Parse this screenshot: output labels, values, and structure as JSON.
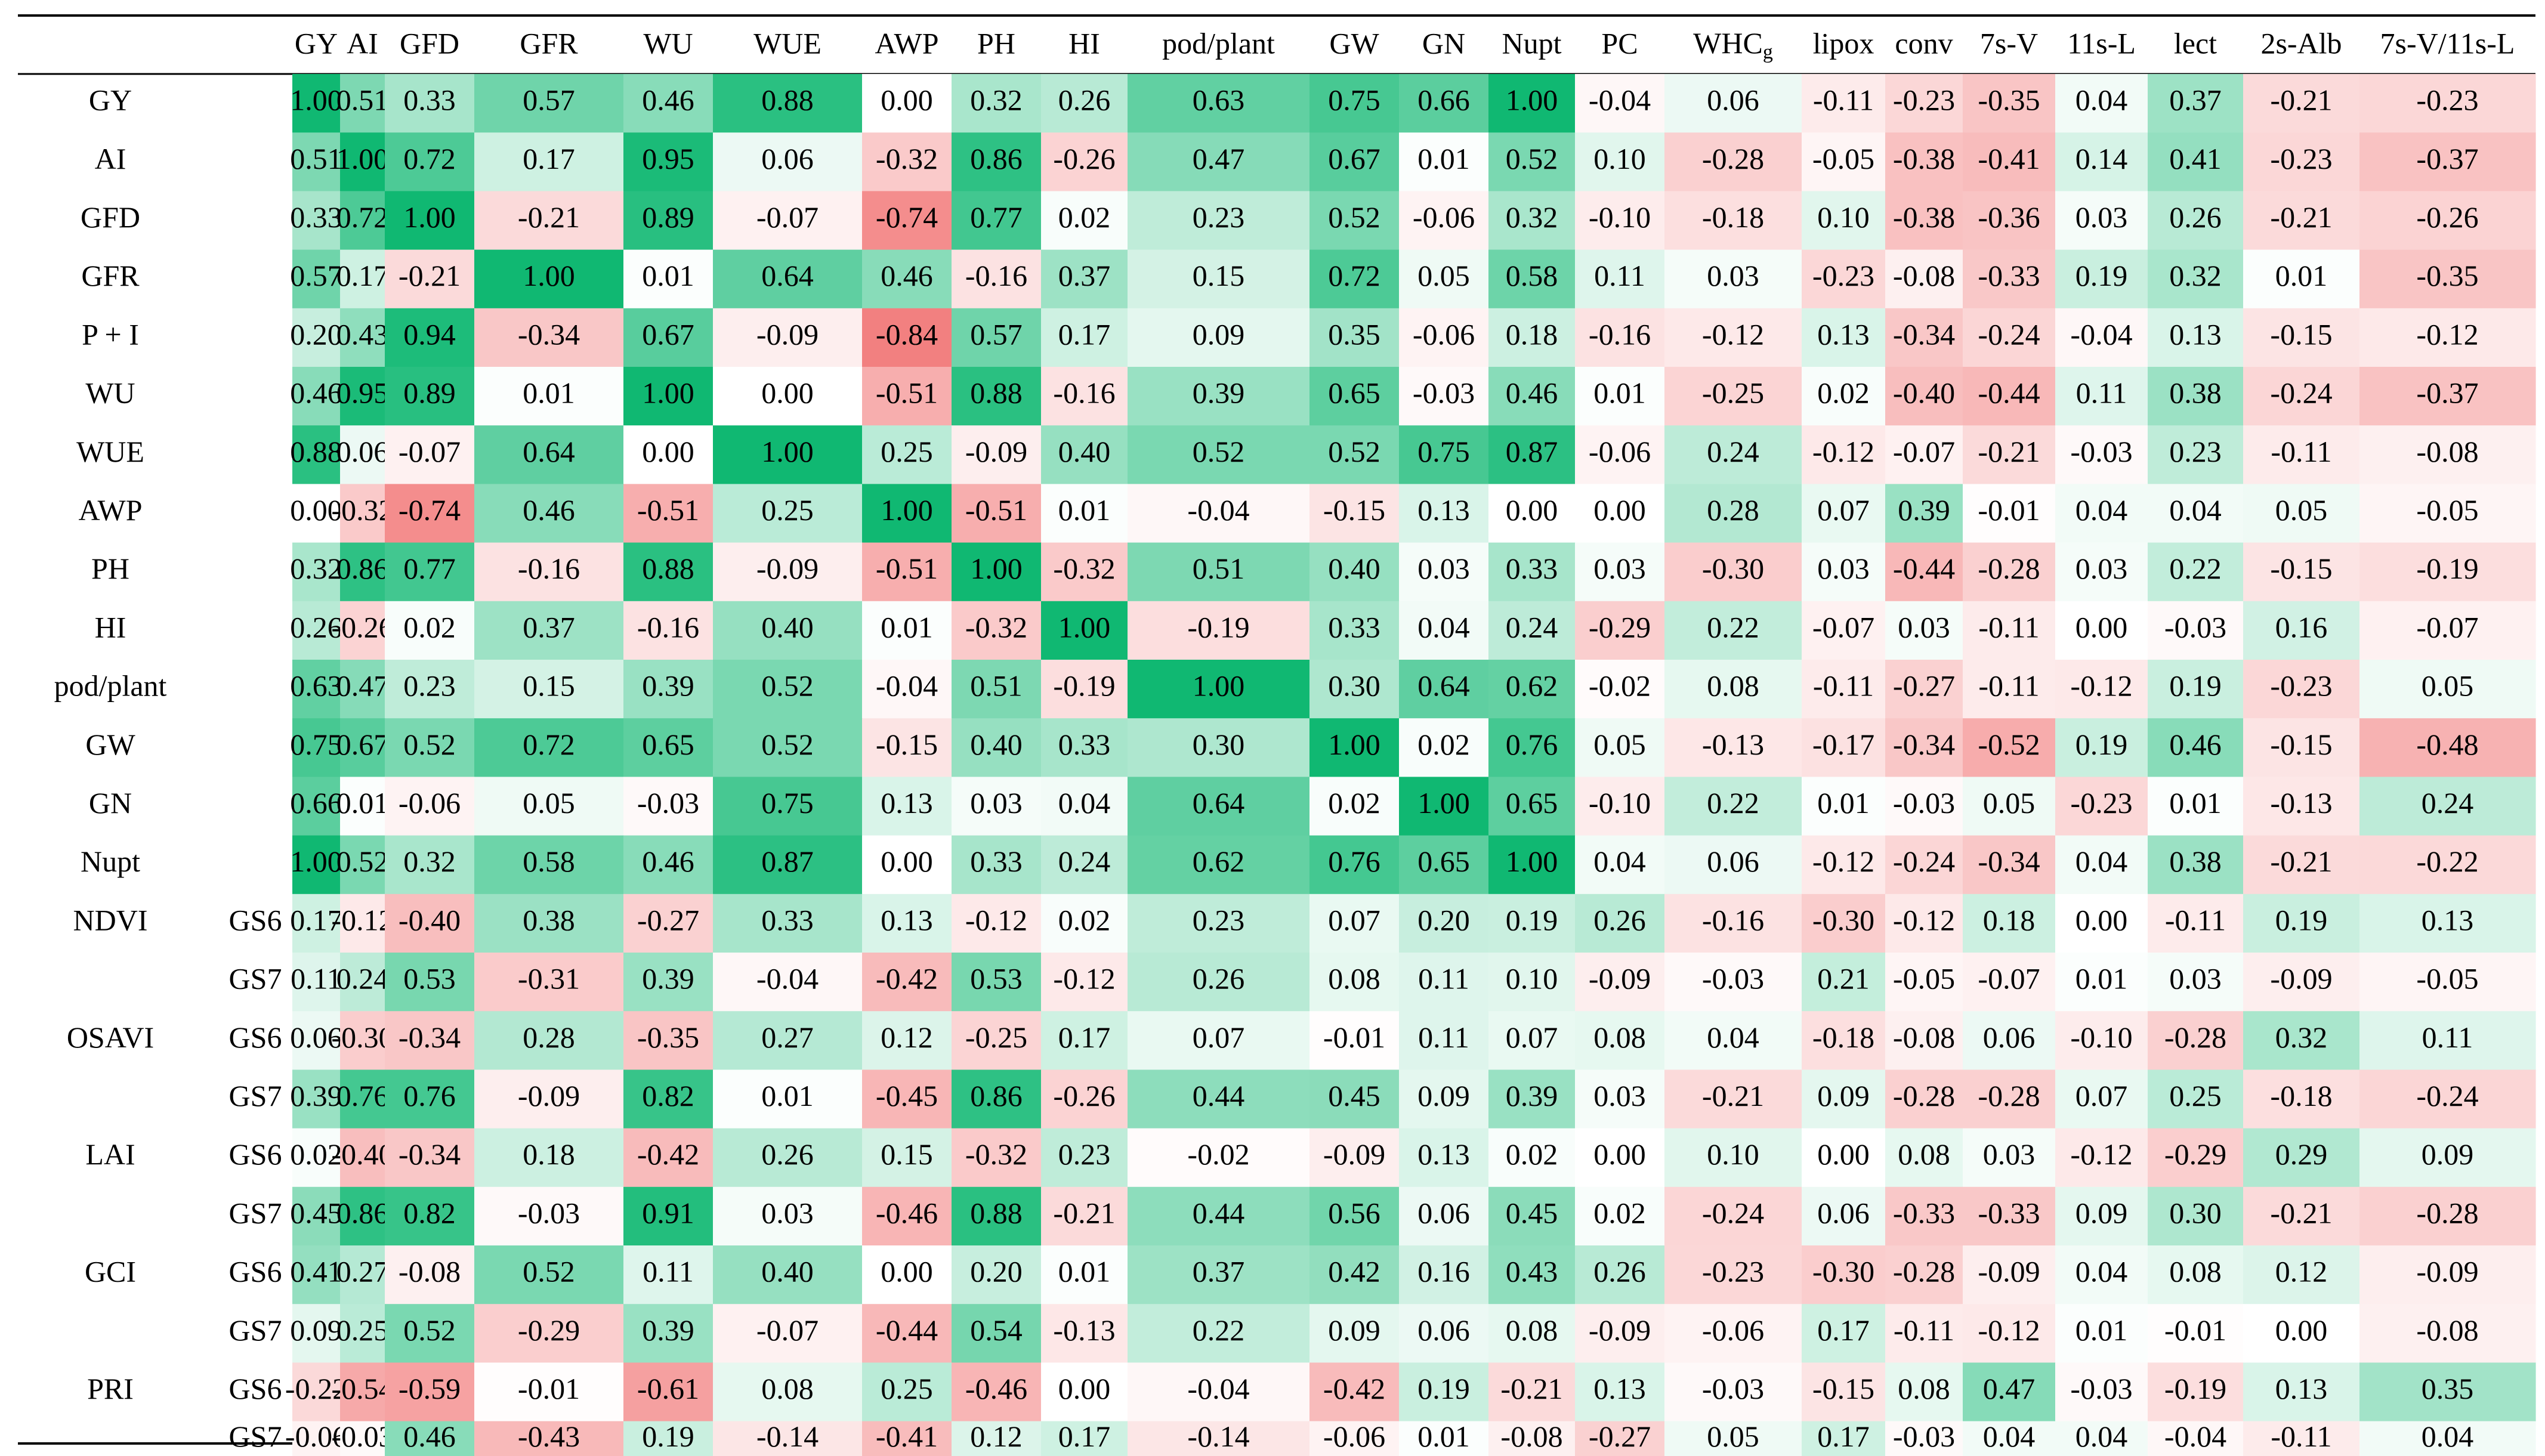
{
  "chart_data": {
    "type": "heatmap",
    "title": "",
    "color_scale": {
      "negative": "#f06a6a",
      "zero": "#ffffff",
      "positive": "#10b872",
      "range": [
        -1,
        1
      ]
    },
    "columns": [
      "GY",
      "AI",
      "GFD",
      "GFR",
      "WU",
      "WUE",
      "AWP",
      "PH",
      "HI",
      "pod/plant",
      "GW",
      "GN",
      "Nupt",
      "PC",
      "WHCg",
      "lipox",
      "conv",
      "7s-V",
      "11s-L",
      "lect",
      "2s-Alb",
      "7s-V/11s-L"
    ],
    "rows": [
      {
        "label": "GY",
        "stage": "",
        "values": [
          1.0,
          0.51,
          0.33,
          0.57,
          0.46,
          0.88,
          0.0,
          0.32,
          0.26,
          0.63,
          0.75,
          0.66,
          1.0,
          -0.04,
          0.06,
          -0.11,
          -0.23,
          -0.35,
          0.04,
          0.37,
          -0.21,
          -0.23
        ]
      },
      {
        "label": "AI",
        "stage": "",
        "values": [
          0.51,
          1.0,
          0.72,
          0.17,
          0.95,
          0.06,
          -0.32,
          0.86,
          -0.26,
          0.47,
          0.67,
          0.01,
          0.52,
          0.1,
          -0.28,
          -0.05,
          -0.38,
          -0.41,
          0.14,
          0.41,
          -0.23,
          -0.37
        ]
      },
      {
        "label": "GFD",
        "stage": "",
        "values": [
          0.33,
          0.72,
          1.0,
          -0.21,
          0.89,
          -0.07,
          -0.74,
          0.77,
          0.02,
          0.23,
          0.52,
          -0.06,
          0.32,
          -0.1,
          -0.18,
          0.1,
          -0.38,
          -0.36,
          0.03,
          0.26,
          -0.21,
          -0.26
        ]
      },
      {
        "label": "GFR",
        "stage": "",
        "values": [
          0.57,
          0.17,
          -0.21,
          1.0,
          0.01,
          0.64,
          0.46,
          -0.16,
          0.37,
          0.15,
          0.72,
          0.05,
          0.58,
          0.11,
          0.03,
          -0.23,
          -0.08,
          -0.33,
          0.19,
          0.32,
          0.01,
          -0.35
        ]
      },
      {
        "label": "P + I",
        "stage": "",
        "values": [
          0.2,
          0.43,
          0.94,
          -0.34,
          0.67,
          -0.09,
          -0.84,
          0.57,
          0.17,
          0.09,
          0.35,
          -0.06,
          0.18,
          -0.16,
          -0.12,
          0.13,
          -0.34,
          -0.24,
          -0.04,
          0.13,
          -0.15,
          -0.12
        ]
      },
      {
        "label": "WU",
        "stage": "",
        "values": [
          0.46,
          0.95,
          0.89,
          0.01,
          1.0,
          0.0,
          -0.51,
          0.88,
          -0.16,
          0.39,
          0.65,
          -0.03,
          0.46,
          0.01,
          -0.25,
          0.02,
          -0.4,
          -0.44,
          0.11,
          0.38,
          -0.24,
          -0.37
        ]
      },
      {
        "label": "WUE",
        "stage": "",
        "values": [
          0.88,
          0.06,
          -0.07,
          0.64,
          0.0,
          1.0,
          0.25,
          -0.09,
          0.4,
          0.52,
          0.52,
          0.75,
          0.87,
          -0.06,
          0.24,
          -0.12,
          -0.07,
          -0.21,
          -0.03,
          0.23,
          -0.11,
          -0.08
        ]
      },
      {
        "label": "AWP",
        "stage": "",
        "values": [
          0.0,
          -0.32,
          -0.74,
          0.46,
          -0.51,
          0.25,
          1.0,
          -0.51,
          0.01,
          -0.04,
          -0.15,
          0.13,
          0.0,
          0.0,
          0.28,
          0.07,
          0.39,
          -0.01,
          0.04,
          0.04,
          0.05,
          -0.05
        ]
      },
      {
        "label": "PH",
        "stage": "",
        "values": [
          0.32,
          0.86,
          0.77,
          -0.16,
          0.88,
          -0.09,
          -0.51,
          1.0,
          -0.32,
          0.51,
          0.4,
          0.03,
          0.33,
          0.03,
          -0.3,
          0.03,
          -0.44,
          -0.28,
          0.03,
          0.22,
          -0.15,
          -0.19
        ]
      },
      {
        "label": "HI",
        "stage": "",
        "values": [
          0.26,
          -0.26,
          0.02,
          0.37,
          -0.16,
          0.4,
          0.01,
          -0.32,
          1.0,
          -0.19,
          0.33,
          0.04,
          0.24,
          -0.29,
          0.22,
          -0.07,
          0.03,
          -0.11,
          0.0,
          -0.03,
          0.16,
          -0.07
        ]
      },
      {
        "label": "pod/plant",
        "stage": "",
        "values": [
          0.63,
          0.47,
          0.23,
          0.15,
          0.39,
          0.52,
          -0.04,
          0.51,
          -0.19,
          1.0,
          0.3,
          0.64,
          0.62,
          -0.02,
          0.08,
          -0.11,
          -0.27,
          -0.11,
          -0.12,
          0.19,
          -0.23,
          0.05
        ]
      },
      {
        "label": "GW",
        "stage": "",
        "values": [
          0.75,
          0.67,
          0.52,
          0.72,
          0.65,
          0.52,
          -0.15,
          0.4,
          0.33,
          0.3,
          1.0,
          0.02,
          0.76,
          0.05,
          -0.13,
          -0.17,
          -0.34,
          -0.52,
          0.19,
          0.46,
          -0.15,
          -0.48
        ]
      },
      {
        "label": "GN",
        "stage": "",
        "values": [
          0.66,
          0.01,
          -0.06,
          0.05,
          -0.03,
          0.75,
          0.13,
          0.03,
          0.04,
          0.64,
          0.02,
          1.0,
          0.65,
          -0.1,
          0.22,
          0.01,
          -0.03,
          0.05,
          -0.23,
          0.01,
          -0.13,
          0.24
        ]
      },
      {
        "label": "Nupt",
        "stage": "",
        "values": [
          1.0,
          0.52,
          0.32,
          0.58,
          0.46,
          0.87,
          0.0,
          0.33,
          0.24,
          0.62,
          0.76,
          0.65,
          1.0,
          0.04,
          0.06,
          -0.12,
          -0.24,
          -0.34,
          0.04,
          0.38,
          -0.21,
          -0.22
        ]
      },
      {
        "label": "NDVI",
        "stage": "GS6",
        "values": [
          0.17,
          -0.12,
          -0.4,
          0.38,
          -0.27,
          0.33,
          0.13,
          -0.12,
          0.02,
          0.23,
          0.07,
          0.2,
          0.19,
          0.26,
          -0.16,
          -0.3,
          -0.12,
          0.18,
          0.0,
          -0.11,
          0.19,
          0.13
        ]
      },
      {
        "label": "",
        "stage": "GS7",
        "values": [
          0.11,
          0.24,
          0.53,
          -0.31,
          0.39,
          -0.04,
          -0.42,
          0.53,
          -0.12,
          0.26,
          0.08,
          0.11,
          0.1,
          -0.09,
          -0.03,
          0.21,
          -0.05,
          -0.07,
          0.01,
          0.03,
          -0.09,
          -0.05
        ]
      },
      {
        "label": "OSAVI",
        "stage": "GS6",
        "values": [
          0.06,
          -0.3,
          -0.34,
          0.28,
          -0.35,
          0.27,
          0.12,
          -0.25,
          0.17,
          0.07,
          -0.01,
          0.11,
          0.07,
          0.08,
          0.04,
          -0.18,
          -0.08,
          0.06,
          -0.1,
          -0.28,
          0.32,
          0.11
        ]
      },
      {
        "label": "",
        "stage": "GS7",
        "values": [
          0.39,
          0.76,
          0.76,
          -0.09,
          0.82,
          0.01,
          -0.45,
          0.86,
          -0.26,
          0.44,
          0.45,
          0.09,
          0.39,
          0.03,
          -0.21,
          0.09,
          -0.28,
          -0.28,
          0.07,
          0.25,
          -0.18,
          -0.24
        ]
      },
      {
        "label": "LAI",
        "stage": "GS6",
        "values": [
          0.02,
          -0.4,
          -0.34,
          0.18,
          -0.42,
          0.26,
          0.15,
          -0.32,
          0.23,
          -0.02,
          -0.09,
          0.13,
          0.02,
          0.0,
          0.1,
          0.0,
          0.08,
          0.03,
          -0.12,
          -0.29,
          0.29,
          0.09
        ]
      },
      {
        "label": "",
        "stage": "GS7",
        "values": [
          0.45,
          0.86,
          0.82,
          -0.03,
          0.91,
          0.03,
          -0.46,
          0.88,
          -0.21,
          0.44,
          0.56,
          0.06,
          0.45,
          0.02,
          -0.24,
          0.06,
          -0.33,
          -0.33,
          0.09,
          0.3,
          -0.21,
          -0.28
        ]
      },
      {
        "label": "GCI",
        "stage": "GS6",
        "values": [
          0.41,
          0.27,
          -0.08,
          0.52,
          0.11,
          0.4,
          0.0,
          0.2,
          0.01,
          0.37,
          0.42,
          0.16,
          0.43,
          0.26,
          -0.23,
          -0.3,
          -0.28,
          -0.09,
          0.04,
          0.08,
          0.12,
          -0.09
        ]
      },
      {
        "label": "",
        "stage": "GS7",
        "values": [
          0.09,
          0.25,
          0.52,
          -0.29,
          0.39,
          -0.07,
          -0.44,
          0.54,
          -0.13,
          0.22,
          0.09,
          0.06,
          0.08,
          -0.09,
          -0.06,
          0.17,
          -0.11,
          -0.12,
          0.01,
          -0.01,
          0.0,
          -0.08
        ]
      },
      {
        "label": "PRI",
        "stage": "GS6",
        "values": [
          -0.22,
          -0.54,
          -0.59,
          -0.01,
          -0.61,
          0.08,
          0.25,
          -0.46,
          0.0,
          -0.04,
          -0.42,
          0.19,
          -0.21,
          0.13,
          -0.03,
          -0.15,
          0.08,
          0.47,
          -0.03,
          -0.19,
          0.13,
          0.35
        ]
      },
      {
        "label": "",
        "stage": "GS7",
        "values": [
          -0.06,
          -0.03,
          0.46,
          -0.43,
          0.19,
          -0.14,
          -0.41,
          0.12,
          0.17,
          -0.14,
          -0.06,
          0.01,
          -0.08,
          -0.27,
          0.05,
          0.17,
          -0.03,
          0.04,
          0.04,
          -0.04,
          -0.11,
          0.04
        ]
      }
    ]
  }
}
